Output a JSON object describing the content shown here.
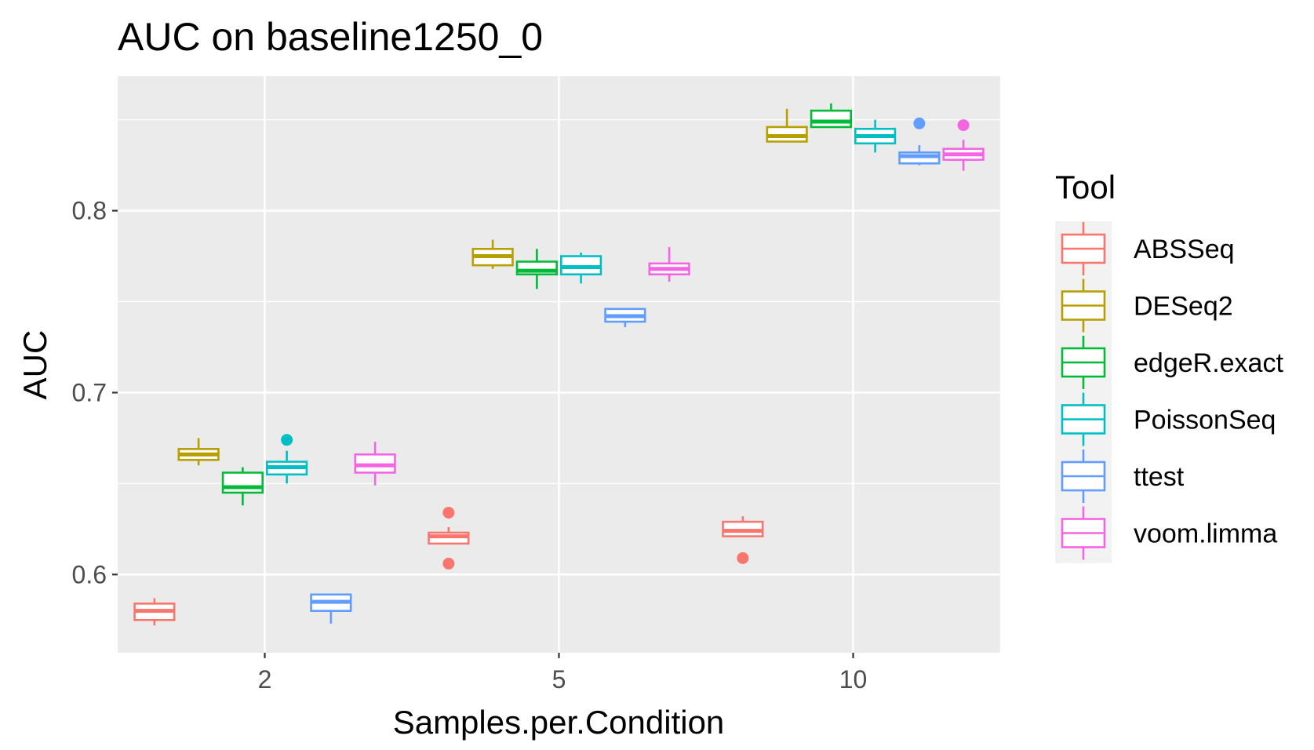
{
  "chart_data": {
    "type": "box",
    "title": "AUC on baseline1250_0",
    "xlabel": "Samples.per.Condition",
    "ylabel": "AUC",
    "categories": [
      "2",
      "5",
      "10"
    ],
    "ylim": [
      0.557,
      0.874
    ],
    "yticks": [
      0.6,
      0.7,
      0.8
    ],
    "ytick_labels": [
      "0.6",
      "0.7",
      "0.8"
    ],
    "grid": true,
    "legend_title": "Tool",
    "legend_position": "right",
    "series": [
      {
        "name": "ABSSeq",
        "color": "#F8766D",
        "boxes": [
          {
            "min": 0.572,
            "q1": 0.575,
            "median": 0.58,
            "q3": 0.584,
            "max": 0.587,
            "outliers": []
          },
          {
            "min": 0.617,
            "q1": 0.617,
            "median": 0.621,
            "q3": 0.623,
            "max": 0.626,
            "outliers": [
              0.634,
              0.606
            ]
          },
          {
            "min": 0.621,
            "q1": 0.621,
            "median": 0.624,
            "q3": 0.629,
            "max": 0.632,
            "outliers": [
              0.609
            ]
          }
        ]
      },
      {
        "name": "DESeq2",
        "color": "#B79F00",
        "boxes": [
          {
            "min": 0.66,
            "q1": 0.663,
            "median": 0.666,
            "q3": 0.669,
            "max": 0.675,
            "outliers": []
          },
          {
            "min": 0.768,
            "q1": 0.77,
            "median": 0.775,
            "q3": 0.779,
            "max": 0.784,
            "outliers": []
          },
          {
            "min": 0.838,
            "q1": 0.838,
            "median": 0.841,
            "q3": 0.846,
            "max": 0.856,
            "outliers": []
          }
        ]
      },
      {
        "name": "edgeR.exact",
        "color": "#00BA38",
        "boxes": [
          {
            "min": 0.638,
            "q1": 0.645,
            "median": 0.648,
            "q3": 0.656,
            "max": 0.659,
            "outliers": []
          },
          {
            "min": 0.757,
            "q1": 0.765,
            "median": 0.767,
            "q3": 0.772,
            "max": 0.779,
            "outliers": []
          },
          {
            "min": 0.846,
            "q1": 0.846,
            "median": 0.849,
            "q3": 0.855,
            "max": 0.859,
            "outliers": []
          }
        ]
      },
      {
        "name": "PoissonSeq",
        "color": "#00BFC4",
        "boxes": [
          {
            "min": 0.65,
            "q1": 0.655,
            "median": 0.659,
            "q3": 0.662,
            "max": 0.668,
            "outliers": [
              0.674
            ]
          },
          {
            "min": 0.76,
            "q1": 0.765,
            "median": 0.769,
            "q3": 0.775,
            "max": 0.777,
            "outliers": []
          },
          {
            "min": 0.832,
            "q1": 0.837,
            "median": 0.841,
            "q3": 0.845,
            "max": 0.85,
            "outliers": []
          }
        ]
      },
      {
        "name": "ttest",
        "color": "#619CFF",
        "boxes": [
          {
            "min": 0.573,
            "q1": 0.58,
            "median": 0.585,
            "q3": 0.589,
            "max": 0.589,
            "outliers": []
          },
          {
            "min": 0.736,
            "q1": 0.739,
            "median": 0.742,
            "q3": 0.746,
            "max": 0.746,
            "outliers": []
          },
          {
            "min": 0.825,
            "q1": 0.826,
            "median": 0.83,
            "q3": 0.832,
            "max": 0.836,
            "outliers": [
              0.848
            ]
          }
        ]
      },
      {
        "name": "voom.limma",
        "color": "#F564E3",
        "boxes": [
          {
            "min": 0.649,
            "q1": 0.656,
            "median": 0.66,
            "q3": 0.666,
            "max": 0.673,
            "outliers": []
          },
          {
            "min": 0.761,
            "q1": 0.765,
            "median": 0.768,
            "q3": 0.771,
            "max": 0.78,
            "outliers": []
          },
          {
            "min": 0.822,
            "q1": 0.828,
            "median": 0.831,
            "q3": 0.834,
            "max": 0.839,
            "outliers": [
              0.847
            ]
          }
        ]
      }
    ]
  }
}
